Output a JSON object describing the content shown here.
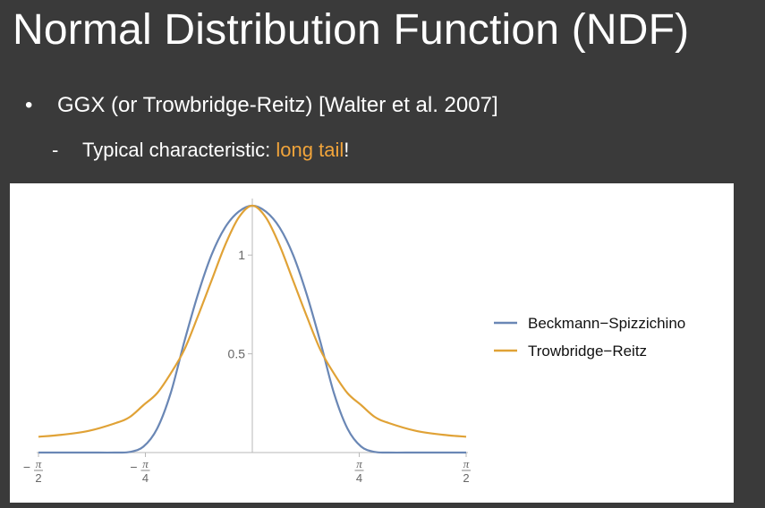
{
  "slide": {
    "title": "Normal Distribution Function (NDF)",
    "bullet": {
      "marker": "•",
      "text": "GGX (or Trowbridge-Reitz) [Walter et al. 2007]"
    },
    "sub_bullet": {
      "marker": "-",
      "prefix": "Typical characteristic: ",
      "highlight": "long tail",
      "suffix": "!"
    },
    "colors": {
      "background": "#3a3a3a",
      "text": "#ffffff",
      "highlight": "#f1a43a"
    }
  },
  "chart_data": {
    "type": "line",
    "title": "",
    "xlabel": "",
    "ylabel": "",
    "xlim": [
      -1.5708,
      1.5708
    ],
    "ylim": [
      0,
      1.25
    ],
    "grid": false,
    "legend_position": "right",
    "x_ticks": [
      {
        "value": -1.5708,
        "sign": "−",
        "num": "π",
        "den": "2"
      },
      {
        "value": -0.7854,
        "sign": "−",
        "num": "π",
        "den": "4"
      },
      {
        "value": 0.7854,
        "sign": "",
        "num": "π",
        "den": "4"
      },
      {
        "value": 1.5708,
        "sign": "",
        "num": "π",
        "den": "2"
      }
    ],
    "y_ticks": [
      {
        "value": 0.5,
        "label": "0.5"
      },
      {
        "value": 1.0,
        "label": "1"
      }
    ],
    "series": [
      {
        "name": "Beckmann−Spizzichino",
        "color": "#6a87b5",
        "x": [
          -1.5708,
          -1.4,
          -1.2,
          -1.0,
          -0.9,
          -0.8,
          -0.7,
          -0.6,
          -0.5,
          -0.4,
          -0.3,
          -0.2,
          -0.1,
          0,
          0.1,
          0.2,
          0.3,
          0.4,
          0.5,
          0.6,
          0.7,
          0.8,
          0.9,
          1.0,
          1.2,
          1.4,
          1.5708
        ],
        "y": [
          0.0,
          0.0,
          0.0,
          0.0,
          0.003,
          0.03,
          0.12,
          0.3,
          0.56,
          0.8,
          1.0,
          1.14,
          1.22,
          1.25,
          1.22,
          1.14,
          1.0,
          0.8,
          0.56,
          0.3,
          0.12,
          0.03,
          0.003,
          0.0,
          0.0,
          0.0,
          0.0
        ]
      },
      {
        "name": "Trowbridge−Reitz",
        "color": "#e0a236",
        "x": [
          -1.5708,
          -1.4,
          -1.2,
          -1.0,
          -0.9,
          -0.8,
          -0.7,
          -0.6,
          -0.5,
          -0.4,
          -0.3,
          -0.2,
          -0.1,
          0,
          0.1,
          0.2,
          0.3,
          0.4,
          0.5,
          0.6,
          0.7,
          0.8,
          0.9,
          1.0,
          1.2,
          1.4,
          1.5708
        ],
        "y": [
          0.08,
          0.09,
          0.11,
          0.15,
          0.18,
          0.24,
          0.3,
          0.4,
          0.52,
          0.69,
          0.87,
          1.05,
          1.19,
          1.25,
          1.19,
          1.05,
          0.87,
          0.69,
          0.52,
          0.4,
          0.3,
          0.24,
          0.18,
          0.15,
          0.11,
          0.09,
          0.08
        ]
      }
    ]
  }
}
